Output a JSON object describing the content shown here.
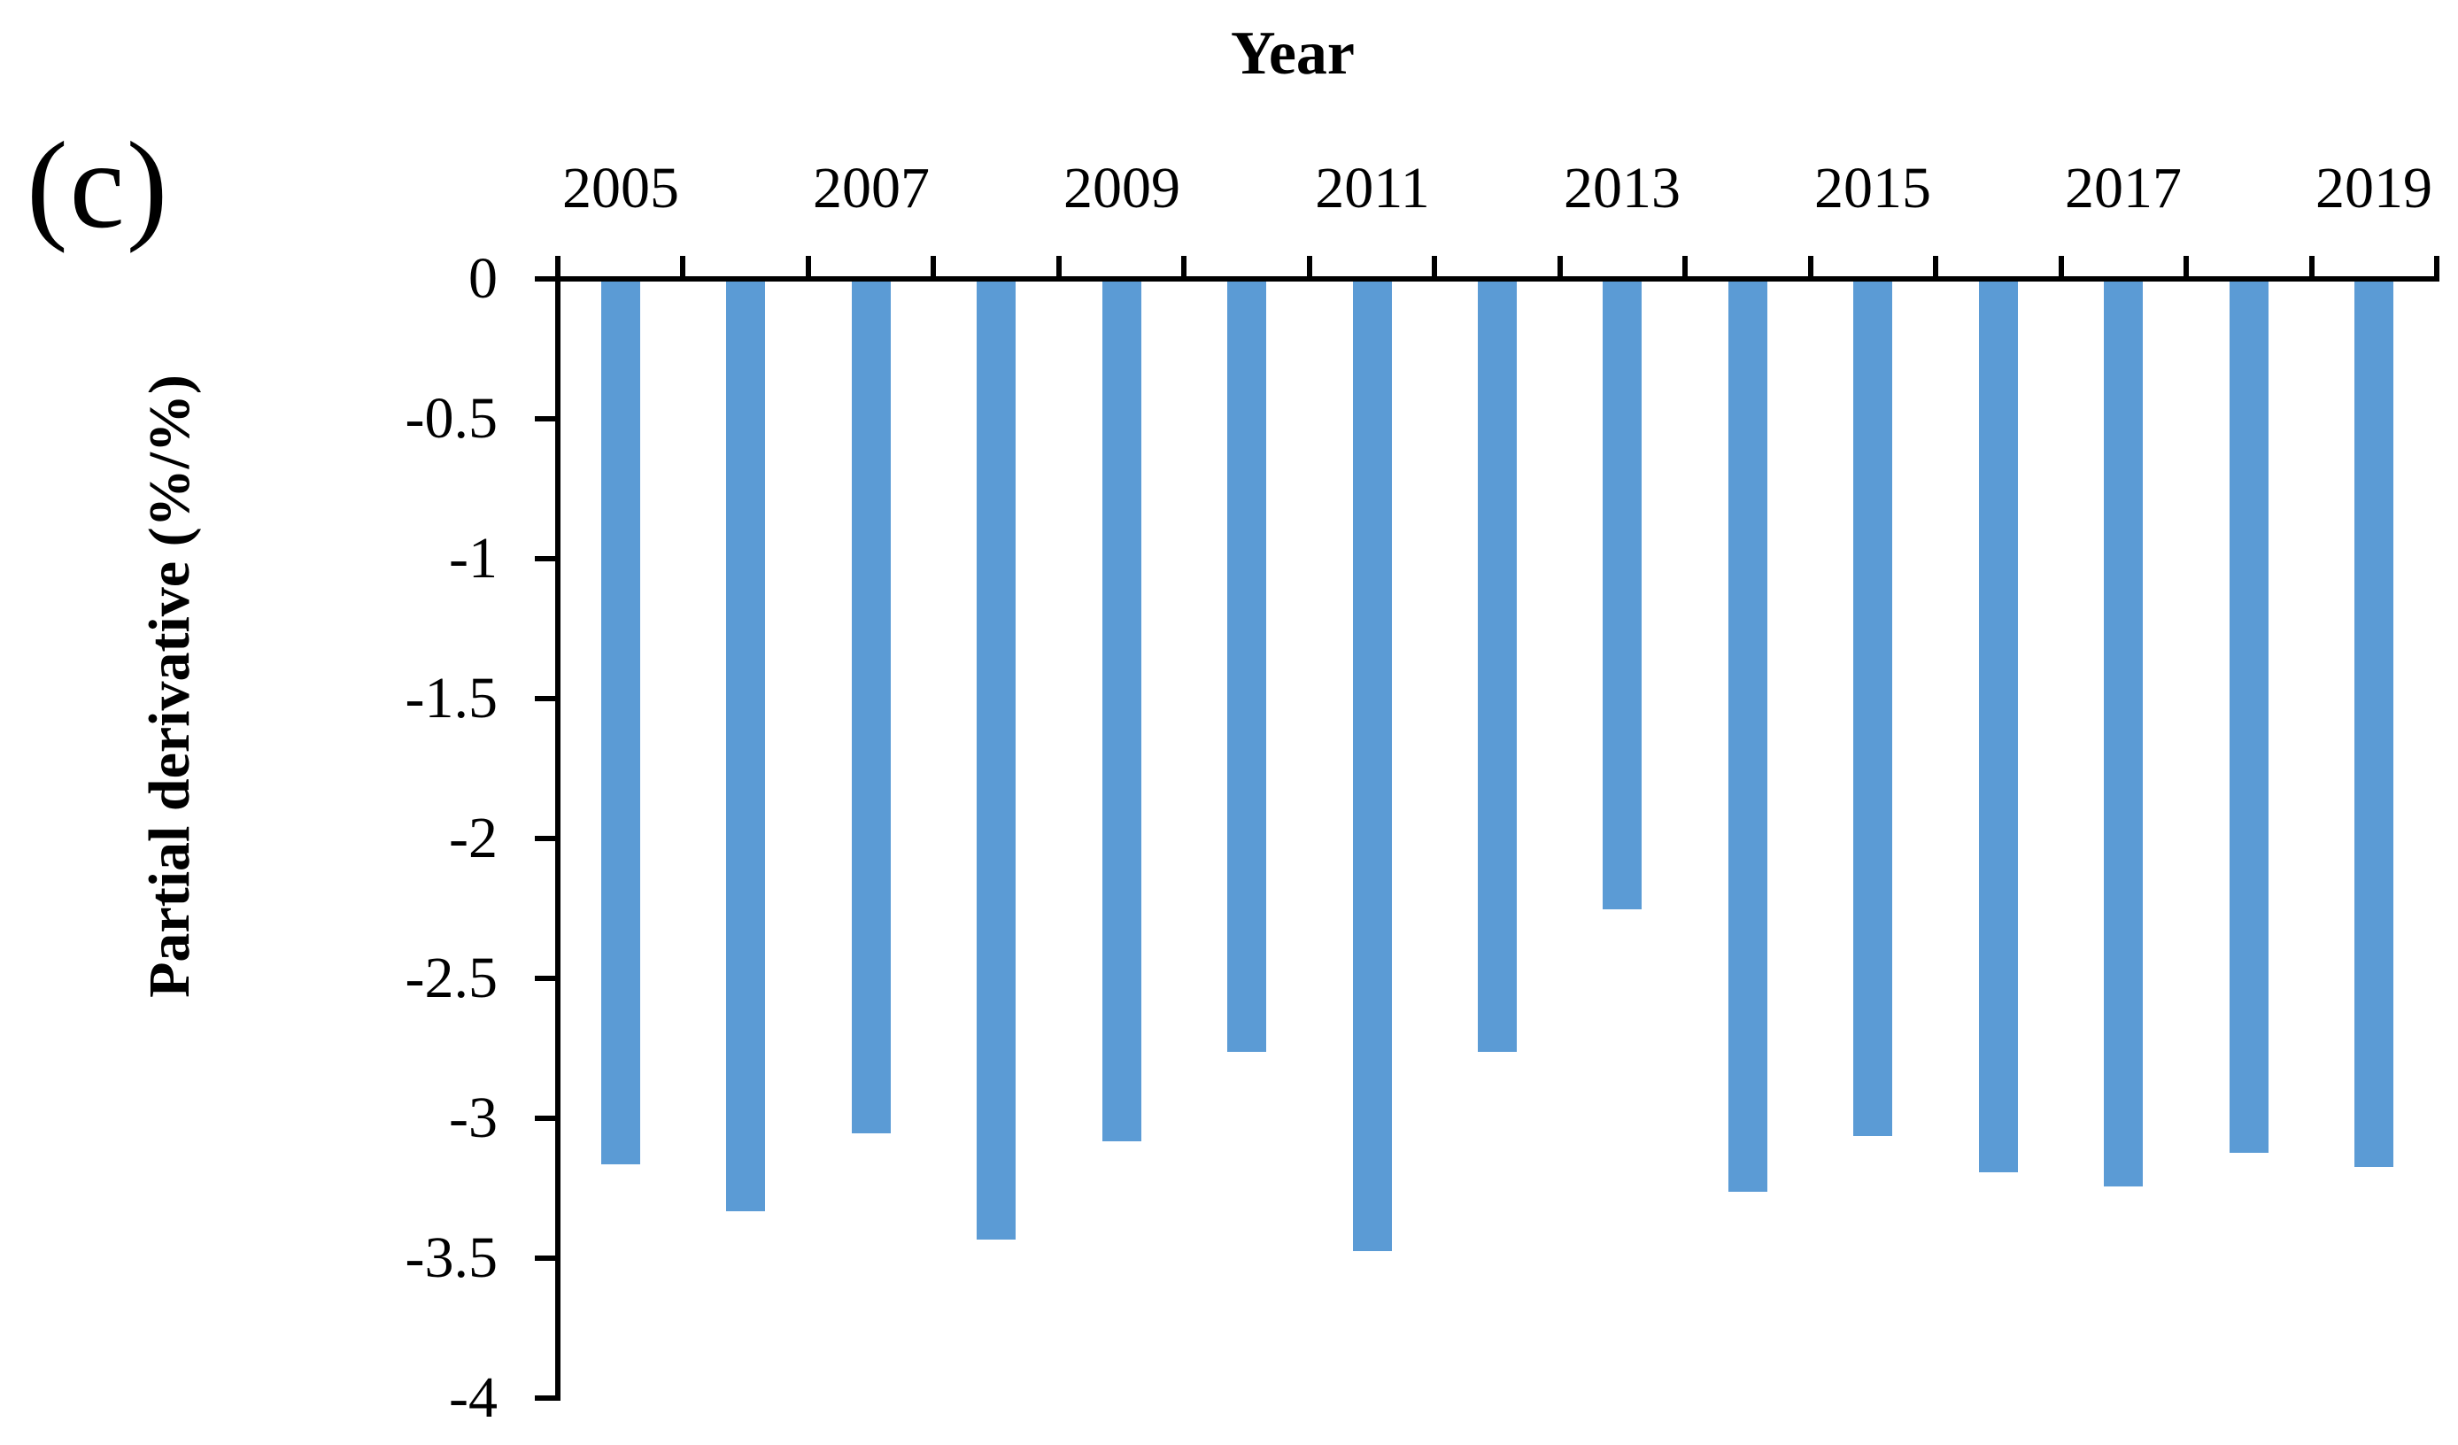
{
  "figure": {
    "panel_label": "(c)",
    "background_color": "#ffffff"
  },
  "chart_data": {
    "type": "bar",
    "orientation": "vertical",
    "title": "",
    "xlabel": "Year",
    "ylabel": "Partial derivative (%/%)",
    "categories": [
      "2005",
      "2006",
      "2007",
      "2008",
      "2009",
      "2010",
      "2011",
      "2012",
      "2013",
      "2014",
      "2015",
      "2016",
      "2017",
      "2018",
      "2019"
    ],
    "values": [
      -3.16,
      -3.33,
      -3.05,
      -3.43,
      -3.08,
      -2.76,
      -3.47,
      -2.76,
      -2.25,
      -3.26,
      -3.06,
      -3.19,
      -3.24,
      -3.12,
      -3.17
    ],
    "x_tick_labels_shown": [
      "2005",
      "2007",
      "2009",
      "2011",
      "2013",
      "2015",
      "2017",
      "2019"
    ],
    "x_tick_label_interval": 2,
    "y_ticks": [
      0,
      -0.5,
      -1,
      -1.5,
      -2,
      -2.5,
      -3,
      -3.5,
      -4
    ],
    "y_tick_labels": [
      "0",
      "-0.5",
      "-1",
      "-1.5",
      "-2",
      "-2.5",
      "-3",
      "-3.5",
      "-4"
    ],
    "ylim": [
      -4,
      0
    ],
    "grid": false,
    "legend": null,
    "bar_color": "#5B9BD5",
    "axis_color": "#000000"
  }
}
